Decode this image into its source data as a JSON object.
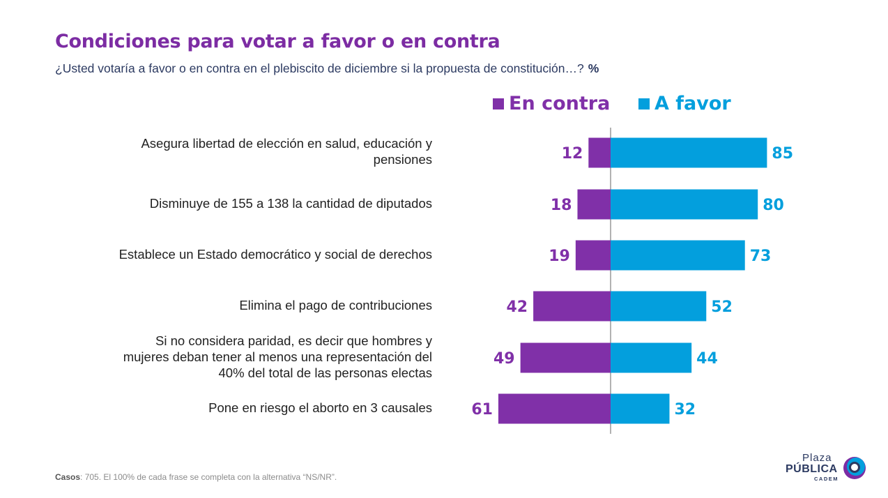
{
  "header": {
    "title": "Condiciones para votar a favor o en contra",
    "subtitle": "¿Usted votaría a favor o en contra en el plebiscito de diciembre si la propuesta de constitución…?",
    "subtitle_unit": "%"
  },
  "colors": {
    "title": "#7c2ca3",
    "en_contra": "#8030a8",
    "a_favor": "#039fdd",
    "subtitle": "#2c3a61"
  },
  "chart_data": {
    "type": "bar",
    "orientation": "horizontal-diverging",
    "categories": [
      "Asegura libertad de elección en salud, educación y pensiones",
      "Disminuye de 155 a 138 la cantidad de diputados",
      "Establece un Estado democrático y social de derechos",
      "Elimina el pago de contribuciones",
      "Si no considera paridad, es decir que hombres y mujeres deban tener al menos una representación del 40% del total de las personas electas",
      "Pone en riesgo el aborto en 3 causales"
    ],
    "category_lines": [
      [
        "Asegura libertad de elección en salud, educación y",
        "pensiones"
      ],
      [
        "Disminuye de 155 a 138 la cantidad de diputados"
      ],
      [
        "Establece un Estado democrático y social de derechos"
      ],
      [
        "Elimina el pago de contribuciones"
      ],
      [
        "Si no considera paridad, es decir que hombres y",
        "mujeres deban tener al menos una representación del",
        "40% del total de las personas electas"
      ],
      [
        "Pone en riesgo el aborto en 3 causales"
      ]
    ],
    "series": [
      {
        "name": "En contra",
        "values": [
          12,
          18,
          19,
          42,
          49,
          61
        ]
      },
      {
        "name": "A favor",
        "values": [
          85,
          80,
          73,
          52,
          44,
          32
        ]
      }
    ],
    "legend": "top",
    "grid": false
  },
  "footer": {
    "casos_label": "Casos",
    "casos_text": ": 705. El 100% de cada frase se completa con la alternativa “NS/NR”."
  },
  "logo": {
    "line1": "Plaza",
    "line2": "PÚBLICA",
    "line3": "CADEM"
  }
}
